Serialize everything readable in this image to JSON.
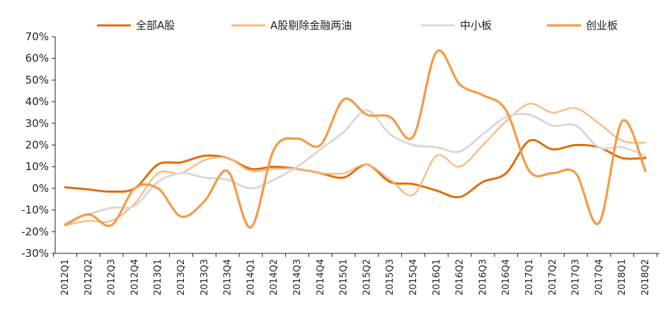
{
  "chart_data": {
    "type": "line",
    "title": "",
    "xlabel": "",
    "ylabel": "",
    "categories": [
      "2012Q1",
      "2012Q2",
      "2012Q3",
      "2012Q4",
      "2013Q1",
      "2013Q2",
      "2013Q3",
      "2013Q4",
      "2014Q1",
      "2014Q2",
      "2014Q3",
      "2014Q4",
      "2015Q1",
      "2015Q2",
      "2015Q3",
      "2015Q4",
      "2016Q1",
      "2016Q2",
      "2016Q3",
      "2016Q4",
      "2017Q1",
      "2017Q2",
      "2017Q3",
      "2017Q4",
      "2018Q1",
      "2018Q2"
    ],
    "yticks": [
      "70%",
      "60%",
      "50%",
      "40%",
      "30%",
      "20%",
      "10%",
      "0%",
      "-10%",
      "-20%",
      "-30%"
    ],
    "ylim": [
      -30,
      70
    ],
    "y_unit": "%",
    "grid": false,
    "legend_position": "top",
    "series": [
      {
        "name": "全部A股",
        "color": "#e46c0a",
        "width": 3,
        "values": [
          0.5,
          -0.5,
          -1.5,
          0,
          11,
          12,
          15,
          14,
          9,
          10,
          9,
          7,
          5,
          11,
          3,
          2,
          -1,
          -4,
          3,
          7,
          22,
          18,
          20,
          19,
          14,
          14
        ]
      },
      {
        "name": "A股剔除金融两油",
        "color": "#fbb779",
        "width": 2.2,
        "values": [
          -17,
          -15,
          -15,
          -7,
          7,
          7,
          13,
          14,
          8,
          9,
          9,
          7,
          7,
          11,
          4,
          -3,
          15,
          10,
          20,
          31,
          39,
          35,
          37,
          30,
          22,
          21
        ]
      },
      {
        "name": "中小板",
        "color": "#d9d9d9",
        "width": 3,
        "values": [
          -16,
          -12,
          -9,
          -8,
          3,
          7,
          5,
          4,
          0,
          4,
          10,
          18,
          26,
          36,
          25,
          20,
          19,
          17,
          25,
          33,
          34,
          29,
          29,
          19,
          19,
          15
        ]
      },
      {
        "name": "创业板",
        "color": "#f59a44",
        "width": 3.2,
        "values": [
          -17,
          -12,
          -17,
          0,
          0,
          -13,
          -6,
          8,
          -18,
          18,
          23,
          20,
          41,
          34,
          33,
          24,
          63,
          48,
          43,
          36,
          8,
          7,
          7,
          -16,
          31,
          8
        ]
      }
    ]
  }
}
